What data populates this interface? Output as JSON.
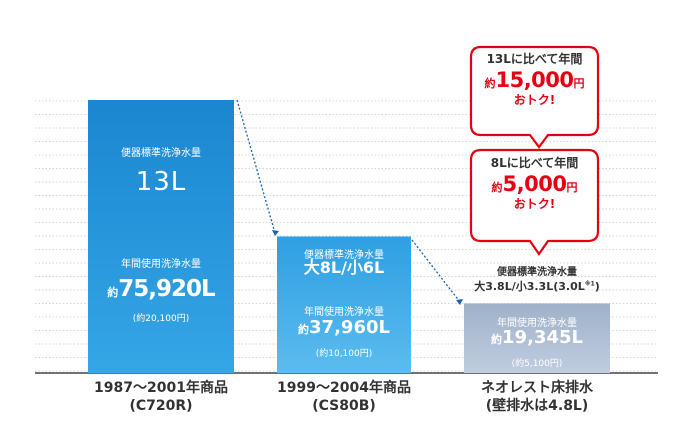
{
  "chart_data": {
    "type": "bar",
    "categories": [
      "1987～2001年商品\n(C720R)",
      "1999～2004年商品\n(CS80B)",
      "ネオレスト床排水\n(壁排水は4.8L)"
    ],
    "values": [
      75920,
      37960,
      19345
    ],
    "colors": [
      "#1e8fd6",
      "#3ea8e6",
      "#a9b9cf"
    ],
    "ylim": [
      0,
      80000
    ],
    "grid": true,
    "xlabel": "",
    "ylabel": ""
  },
  "bars": [
    {
      "cat_line1": "1987～2001年商品",
      "cat_line2": "(C720R)",
      "std_label": "便器標準洗浄水量",
      "std_value": "13L",
      "year_label": "年間使用洗浄水量",
      "prefix": "約",
      "year_value": "75,920L",
      "cost": "(約20,100円)"
    },
    {
      "cat_line1": "1999～2004年商品",
      "cat_line2": "(CS80B)",
      "std_label": "便器標準洗浄水量",
      "std_value": "大8L/小6L",
      "year_label": "年間使用洗浄水量",
      "prefix": "約",
      "year_value": "37,960L",
      "cost": "(約10,100円)"
    },
    {
      "cat_line1": "ネオレスト床排水",
      "cat_line2": "(壁排水は4.8L)",
      "std_label": "便器標準洗浄水量",
      "std_value": "大3.8L/小3.3L(3.0L",
      "std_value_sup": "※1",
      "std_value_end": ")",
      "year_label": "年間使用洗浄水量",
      "prefix": "約",
      "year_value": "19,345L",
      "cost": "(約5,100円)"
    }
  ],
  "callouts": [
    {
      "line1": "13Lに比べて年間",
      "prefix": "約",
      "amount": "15,000",
      "unit": "円",
      "line3": "おトク!"
    },
    {
      "line1": "8Lに比べて年間",
      "prefix": "約",
      "amount": "5,000",
      "unit": "円",
      "line3": "おトク!"
    }
  ]
}
